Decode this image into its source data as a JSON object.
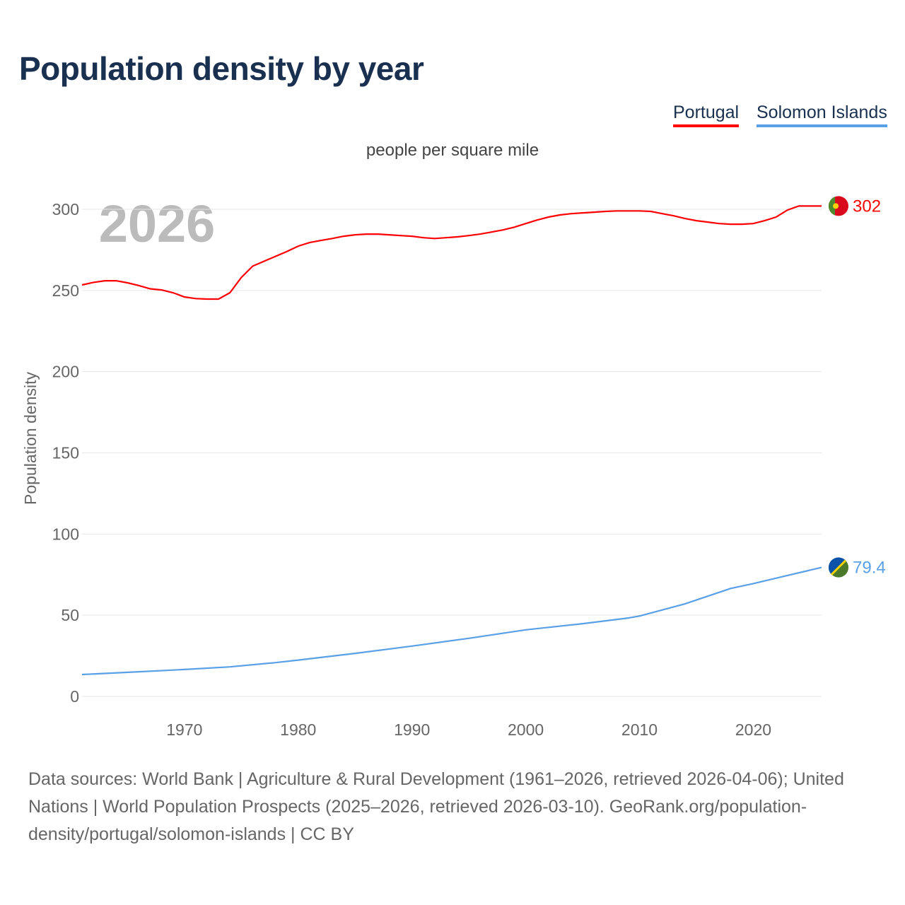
{
  "title": "Population density by year",
  "legend": [
    {
      "label": "Portugal",
      "color": "#ff0000"
    },
    {
      "label": "Solomon Islands",
      "color": "#5aa0e6"
    }
  ],
  "sources": "Data sources: World Bank | Agriculture & Rural Development (1961–2026, retrieved 2026-04-06); United Nations | World Population Prospects (2025–2026, retrieved 2026-03-10). GeoRank.org/population-density/portugal/solomon-islands | CC BY",
  "chart_data": {
    "type": "line",
    "subtitle": "people per square mile",
    "ylabel": "Population density",
    "year_label": "2026",
    "xlim": [
      1961,
      2026
    ],
    "ylim": [
      0,
      300
    ],
    "xticks": [
      "1970",
      "1980",
      "1990",
      "2000",
      "2010",
      "2020"
    ],
    "yticks": [
      "0",
      "50",
      "100",
      "150",
      "200",
      "250",
      "300"
    ],
    "series": [
      {
        "name": "Portugal",
        "color": "#ff0000",
        "end_label": "302",
        "x": [
          1961,
          1962,
          1963,
          1964,
          1965,
          1966,
          1967,
          1968,
          1969,
          1970,
          1971,
          1972,
          1973,
          1974,
          1975,
          1976,
          1977,
          1978,
          1979,
          1980,
          1981,
          1982,
          1983,
          1984,
          1985,
          1986,
          1987,
          1988,
          1989,
          1990,
          1991,
          1992,
          1993,
          1994,
          1995,
          1996,
          1997,
          1998,
          1999,
          2000,
          2001,
          2002,
          2003,
          2004,
          2005,
          2006,
          2007,
          2008,
          2009,
          2010,
          2011,
          2012,
          2013,
          2014,
          2015,
          2016,
          2017,
          2018,
          2019,
          2020,
          2021,
          2022,
          2023,
          2024,
          2025,
          2026
        ],
        "y": [
          253.4,
          255,
          256,
          256,
          254.7,
          253,
          251,
          250.3,
          248.6,
          246,
          245,
          244.7,
          244.7,
          248.6,
          258,
          265,
          268,
          271,
          274,
          277.3,
          279.5,
          280.8,
          282,
          283.4,
          284.3,
          284.7,
          284.7,
          284.3,
          283.8,
          283.4,
          282.5,
          282,
          282.5,
          283,
          283.8,
          284.7,
          286,
          287.3,
          289,
          291.2,
          293.4,
          295.2,
          296.5,
          297.3,
          297.8,
          298.2,
          298.7,
          299,
          299,
          299,
          298.7,
          297.3,
          296,
          294.3,
          293,
          292.1,
          291.2,
          290.8,
          290.8,
          291.2,
          293,
          295.2,
          299.5,
          302,
          302,
          302
        ]
      },
      {
        "name": "Solomon Islands",
        "color": "#5aa0e6",
        "end_label": "79.4",
        "x": [
          1961,
          1966,
          1970,
          1974,
          1978,
          1980,
          1985,
          1990,
          1995,
          2000,
          2005,
          2009,
          2010,
          2014,
          2018,
          2020,
          2023,
          2026
        ],
        "y": [
          13.5,
          15.2,
          16.6,
          18.2,
          20.8,
          22.4,
          26.5,
          31,
          35.8,
          41,
          44.8,
          48.3,
          49.5,
          57,
          66.5,
          69.5,
          74.5,
          79.4
        ]
      }
    ]
  }
}
